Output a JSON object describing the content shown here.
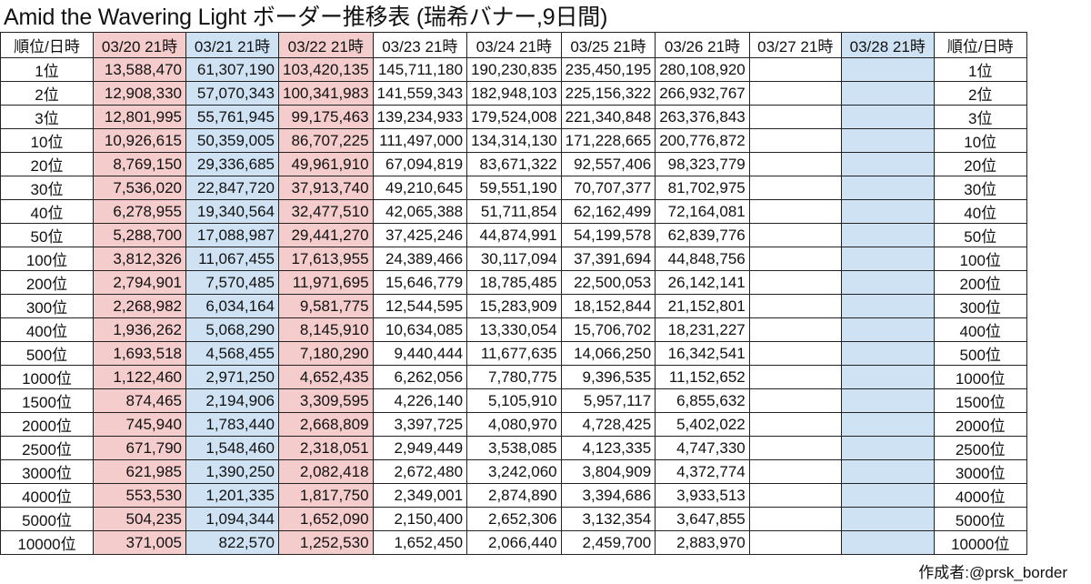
{
  "title": "Amid the Wavering Light ボーダー推移表 (瑞希バナー,9日間)",
  "colors": {
    "pink": "#f4cccc",
    "blue": "#cfe2f3"
  },
  "table": {
    "header_left": "順位/日時",
    "header_right": "順位/日時",
    "columns": [
      {
        "label": "03/20 21時",
        "color": "pink"
      },
      {
        "label": "03/21 21時",
        "color": "blue"
      },
      {
        "label": "03/22 21時",
        "color": "pink"
      },
      {
        "label": "03/23 21時",
        "color": "none"
      },
      {
        "label": "03/24 21時",
        "color": "none"
      },
      {
        "label": "03/25 21時",
        "color": "none"
      },
      {
        "label": "03/26 21時",
        "color": "none"
      },
      {
        "label": "03/27 21時",
        "color": "none"
      },
      {
        "label": "03/28 21時",
        "color": "blue"
      }
    ],
    "rows": [
      {
        "rank": "1位",
        "values": [
          "13,588,470",
          "61,307,190",
          "103,420,135",
          "145,711,180",
          "190,230,835",
          "235,450,195",
          "280,108,920",
          "",
          ""
        ]
      },
      {
        "rank": "2位",
        "values": [
          "12,908,330",
          "57,070,343",
          "100,341,983",
          "141,559,343",
          "182,948,103",
          "225,156,322",
          "266,932,767",
          "",
          ""
        ]
      },
      {
        "rank": "3位",
        "values": [
          "12,801,995",
          "55,761,945",
          "99,175,463",
          "139,234,933",
          "179,524,008",
          "221,340,848",
          "263,376,843",
          "",
          ""
        ]
      },
      {
        "rank": "10位",
        "values": [
          "10,926,615",
          "50,359,005",
          "86,707,225",
          "111,497,000",
          "134,314,130",
          "171,228,665",
          "200,776,872",
          "",
          ""
        ]
      },
      {
        "rank": "20位",
        "values": [
          "8,769,150",
          "29,336,685",
          "49,961,910",
          "67,094,819",
          "83,671,322",
          "92,557,406",
          "98,323,779",
          "",
          ""
        ]
      },
      {
        "rank": "30位",
        "values": [
          "7,536,020",
          "22,847,720",
          "37,913,740",
          "49,210,645",
          "59,551,190",
          "70,707,377",
          "81,702,975",
          "",
          ""
        ]
      },
      {
        "rank": "40位",
        "values": [
          "6,278,955",
          "19,340,564",
          "32,477,510",
          "42,065,388",
          "51,711,854",
          "62,162,499",
          "72,164,081",
          "",
          ""
        ]
      },
      {
        "rank": "50位",
        "values": [
          "5,288,700",
          "17,088,987",
          "29,441,270",
          "37,425,246",
          "44,874,991",
          "54,199,578",
          "62,839,776",
          "",
          ""
        ]
      },
      {
        "rank": "100位",
        "values": [
          "3,812,326",
          "11,067,455",
          "17,613,955",
          "24,389,466",
          "30,117,094",
          "37,391,694",
          "44,848,756",
          "",
          ""
        ]
      },
      {
        "rank": "200位",
        "values": [
          "2,794,901",
          "7,570,485",
          "11,971,695",
          "15,646,779",
          "18,785,485",
          "22,500,053",
          "26,142,141",
          "",
          ""
        ]
      },
      {
        "rank": "300位",
        "values": [
          "2,268,982",
          "6,034,164",
          "9,581,775",
          "12,544,595",
          "15,283,909",
          "18,152,844",
          "21,152,801",
          "",
          ""
        ]
      },
      {
        "rank": "400位",
        "values": [
          "1,936,262",
          "5,068,290",
          "8,145,910",
          "10,634,085",
          "13,330,054",
          "15,706,702",
          "18,231,227",
          "",
          ""
        ]
      },
      {
        "rank": "500位",
        "values": [
          "1,693,518",
          "4,568,455",
          "7,180,290",
          "9,440,444",
          "11,677,635",
          "14,066,250",
          "16,342,541",
          "",
          ""
        ]
      },
      {
        "rank": "1000位",
        "values": [
          "1,122,460",
          "2,971,250",
          "4,652,435",
          "6,262,056",
          "7,780,775",
          "9,396,535",
          "11,152,652",
          "",
          ""
        ]
      },
      {
        "rank": "1500位",
        "values": [
          "874,465",
          "2,194,906",
          "3,309,595",
          "4,226,140",
          "5,105,910",
          "5,957,117",
          "6,855,632",
          "",
          ""
        ]
      },
      {
        "rank": "2000位",
        "values": [
          "745,940",
          "1,783,440",
          "2,668,809",
          "3,397,725",
          "4,080,970",
          "4,728,425",
          "5,402,022",
          "",
          ""
        ]
      },
      {
        "rank": "2500位",
        "values": [
          "671,790",
          "1,548,460",
          "2,318,051",
          "2,949,449",
          "3,538,085",
          "4,123,335",
          "4,747,330",
          "",
          ""
        ]
      },
      {
        "rank": "3000位",
        "values": [
          "621,985",
          "1,390,250",
          "2,082,418",
          "2,672,480",
          "3,242,060",
          "3,804,909",
          "4,372,774",
          "",
          ""
        ]
      },
      {
        "rank": "4000位",
        "values": [
          "553,530",
          "1,201,335",
          "1,817,750",
          "2,349,001",
          "2,874,890",
          "3,394,686",
          "3,933,513",
          "",
          ""
        ]
      },
      {
        "rank": "5000位",
        "values": [
          "504,235",
          "1,094,344",
          "1,652,090",
          "2,150,400",
          "2,652,306",
          "3,132,354",
          "3,647,855",
          "",
          ""
        ]
      },
      {
        "rank": "10000位",
        "values": [
          "371,005",
          "822,570",
          "1,252,530",
          "1,652,450",
          "2,066,440",
          "2,459,700",
          "2,883,970",
          "",
          ""
        ]
      }
    ]
  },
  "credit": "作成者:@prsk_border"
}
